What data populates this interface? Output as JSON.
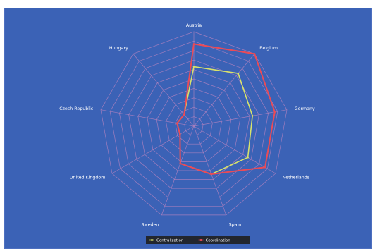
{
  "chart_data": {
    "type": "radar",
    "categories": [
      "Austria",
      "Belgium",
      "Germany",
      "Netherlands",
      "Spain",
      "Sweden",
      "United Kingdom",
      "Czech Republic",
      "Hungary"
    ],
    "rmax": 10,
    "rings": 10,
    "series": [
      {
        "name": "Centralization",
        "color": "#d8e26b",
        "values": [
          6.3,
          7.3,
          6.3,
          6.6,
          5.4,
          4.2,
          1.7,
          1.8,
          1.6
        ]
      },
      {
        "name": "Coordination",
        "color": "#ea4b57",
        "values": [
          8.7,
          10.0,
          8.7,
          8.7,
          5.4,
          4.2,
          1.7,
          1.8,
          1.6
        ]
      }
    ],
    "legend_position": "bottom",
    "colors": {
      "background": "#3b62b6",
      "grid": "#b482c0",
      "text": "#ffffff",
      "legend_bg": "#22262e"
    }
  }
}
